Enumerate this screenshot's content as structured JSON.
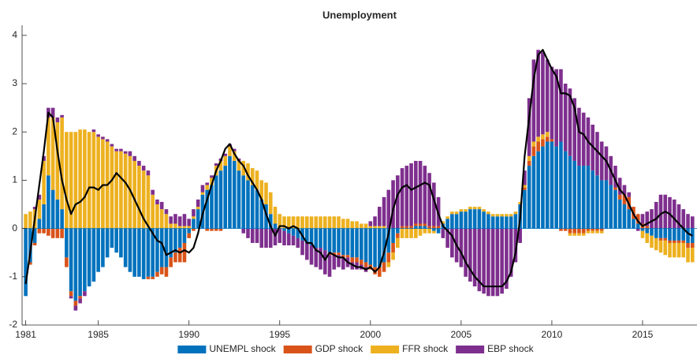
{
  "chart_data": {
    "type": "bar",
    "stacked": true,
    "title": "Unemployment",
    "x": [
      1981,
      1981.25,
      1981.5,
      1981.75,
      1982,
      1982.25,
      1982.5,
      1982.75,
      1983,
      1983.25,
      1983.5,
      1983.75,
      1984,
      1984.25,
      1984.5,
      1984.75,
      1985,
      1985.25,
      1985.5,
      1985.75,
      1986,
      1986.25,
      1986.5,
      1986.75,
      1987,
      1987.25,
      1987.5,
      1987.75,
      1988,
      1988.25,
      1988.5,
      1988.75,
      1989,
      1989.25,
      1989.5,
      1989.75,
      1990,
      1990.25,
      1990.5,
      1990.75,
      1991,
      1991.25,
      1991.5,
      1991.75,
      1992,
      1992.25,
      1992.5,
      1992.75,
      1993,
      1993.25,
      1993.5,
      1993.75,
      1994,
      1994.25,
      1994.5,
      1994.75,
      1995,
      1995.25,
      1995.5,
      1995.75,
      1996,
      1996.25,
      1996.5,
      1996.75,
      1997,
      1997.25,
      1997.5,
      1997.75,
      1998,
      1998.25,
      1998.5,
      1998.75,
      1999,
      1999.25,
      1999.5,
      1999.75,
      2000,
      2000.25,
      2000.5,
      2000.75,
      2001,
      2001.25,
      2001.5,
      2001.75,
      2002,
      2002.25,
      2002.5,
      2002.75,
      2003,
      2003.25,
      2003.5,
      2003.75,
      2004,
      2004.25,
      2004.5,
      2004.75,
      2005,
      2005.25,
      2005.5,
      2005.75,
      2006,
      2006.25,
      2006.5,
      2006.75,
      2007,
      2007.25,
      2007.5,
      2007.75,
      2008,
      2008.25,
      2008.5,
      2008.75,
      2009,
      2009.25,
      2009.5,
      2009.75,
      2010,
      2010.25,
      2010.5,
      2010.75,
      2011,
      2011.25,
      2011.5,
      2011.75,
      2012,
      2012.25,
      2012.5,
      2012.75,
      2013,
      2013.25,
      2013.5,
      2013.75,
      2014,
      2014.25,
      2014.5,
      2014.75,
      2015,
      2015.25,
      2015.5,
      2015.75,
      2016,
      2016.25,
      2016.5,
      2016.75,
      2017,
      2017.25,
      2017.5,
      2017.75
    ],
    "series": [
      {
        "name": "UNEMPL shock",
        "color": "#0072BD",
        "values": [
          -1.4,
          -0.7,
          -0.3,
          0.2,
          0.5,
          1.1,
          0.8,
          0.6,
          0.4,
          -0.6,
          -1.3,
          -1.5,
          -1.4,
          -1.3,
          -1.2,
          -1.1,
          -0.9,
          -0.8,
          -0.6,
          -0.4,
          -0.5,
          -0.6,
          -0.8,
          -0.9,
          -1.0,
          -1.0,
          -1.05,
          -1.0,
          -1.0,
          -0.9,
          -0.8,
          -0.8,
          -0.6,
          -0.5,
          -0.4,
          -0.3,
          -0.1,
          0.2,
          0.4,
          0.7,
          0.8,
          0.9,
          1.1,
          1.2,
          1.3,
          1.5,
          1.4,
          1.2,
          1.1,
          1.0,
          0.9,
          0.8,
          0.6,
          0.5,
          0.3,
          0.1,
          0,
          -0.05,
          -0.1,
          -0.15,
          -0.2,
          -0.25,
          -0.3,
          -0.35,
          -0.4,
          -0.4,
          -0.45,
          -0.5,
          -0.5,
          -0.5,
          -0.55,
          -0.55,
          -0.6,
          -0.6,
          -0.65,
          -0.7,
          -0.75,
          -0.8,
          -0.8,
          -0.7,
          -0.5,
          -0.3,
          -0.1,
          0,
          0,
          0,
          0.05,
          0.05,
          0.05,
          0,
          -0.05,
          -0.1,
          0.1,
          0.2,
          0.3,
          0.3,
          0.35,
          0.35,
          0.4,
          0.4,
          0.4,
          0.35,
          0.3,
          0.25,
          0.25,
          0.25,
          0.25,
          0.25,
          0.3,
          0.5,
          0.8,
          1.3,
          1.5,
          1.6,
          1.7,
          1.8,
          1.8,
          1.7,
          1.8,
          1.6,
          1.5,
          1.4,
          1.3,
          1.3,
          1.3,
          1.2,
          1.1,
          1.0,
          1.0,
          0.9,
          0.8,
          0.6,
          0.5,
          0.4,
          0.2,
          0.1,
          -0.05,
          -0.1,
          -0.15,
          -0.2,
          -0.2,
          -0.2,
          -0.25,
          -0.25,
          -0.25,
          -0.25,
          -0.3,
          -0.3
        ]
      },
      {
        "name": "GDP shock",
        "color": "#D95319",
        "values": [
          0,
          -0.05,
          -0.05,
          -0.1,
          -0.1,
          -0.15,
          -0.2,
          -0.2,
          -0.2,
          -0.2,
          -0.1,
          -0.1,
          -0.05,
          0,
          0,
          0,
          0,
          0,
          0,
          0,
          0,
          0,
          0,
          0,
          0,
          0,
          0,
          -0.05,
          -0.05,
          -0.1,
          -0.15,
          -0.2,
          -0.2,
          -0.2,
          -0.3,
          -0.4,
          -0.1,
          -0.05,
          0,
          0,
          -0.05,
          -0.05,
          -0.05,
          -0.05,
          0,
          0,
          0,
          0,
          0,
          0,
          0,
          0,
          0,
          0,
          0,
          0,
          0,
          0,
          0,
          0,
          0,
          0,
          0,
          0,
          0,
          0,
          0,
          -0.05,
          -0.05,
          -0.05,
          -0.05,
          -0.05,
          -0.1,
          -0.1,
          -0.1,
          -0.1,
          -0.1,
          -0.15,
          -0.2,
          -0.2,
          -0.2,
          -0.2,
          -0.1,
          0.05,
          0.05,
          0.05,
          0.05,
          0.05,
          0.05,
          0.05,
          0.05,
          0.05,
          0,
          0,
          0,
          0,
          0,
          0,
          0,
          0,
          0,
          0,
          0,
          0,
          0,
          0,
          0,
          0,
          0,
          0,
          0.05,
          0.1,
          0.2,
          0.2,
          0.15,
          0.1,
          0.05,
          0,
          -0.05,
          -0.05,
          -0.1,
          -0.1,
          -0.1,
          -0.1,
          -0.05,
          -0.05,
          -0.05,
          -0.05,
          0,
          0,
          0.05,
          0.1,
          0.2,
          0.25,
          0.25,
          0.2,
          0.1,
          0.05,
          0,
          0,
          -0.05,
          -0.05,
          -0.05,
          -0.05,
          -0.05,
          -0.05,
          -0.1,
          -0.1
        ]
      },
      {
        "name": "FFR shock",
        "color": "#EDB120",
        "values": [
          0.3,
          0.35,
          0.4,
          0.4,
          0.9,
          1.2,
          1.5,
          1.6,
          1.9,
          2.0,
          2.0,
          2.0,
          2.05,
          2.05,
          2.0,
          2.0,
          1.9,
          1.85,
          1.8,
          1.7,
          1.6,
          1.6,
          1.55,
          1.5,
          1.4,
          1.3,
          1.2,
          1.1,
          0.7,
          0.5,
          0.4,
          0.3,
          0.1,
          0.1,
          0.05,
          0.05,
          0.05,
          0.05,
          0.05,
          0.05,
          0.1,
          0.15,
          0.2,
          0.2,
          0.2,
          0.2,
          0.2,
          0.2,
          0.3,
          0.35,
          0.35,
          0.4,
          0.4,
          0.45,
          0.45,
          0.35,
          0.3,
          0.25,
          0.25,
          0.25,
          0.25,
          0.25,
          0.25,
          0.25,
          0.25,
          0.25,
          0.25,
          0.25,
          0.25,
          0.25,
          0.2,
          0.2,
          0.15,
          0.15,
          0.1,
          0.1,
          0.05,
          0.05,
          0.05,
          0.05,
          -0.1,
          -0.15,
          -0.2,
          -0.2,
          -0.2,
          -0.2,
          -0.2,
          -0.15,
          -0.1,
          -0.1,
          -0.05,
          0,
          0.05,
          0.05,
          0.05,
          0.05,
          0.05,
          0.05,
          0.05,
          0.05,
          0.05,
          0.05,
          0.05,
          0.05,
          0.05,
          0.05,
          0.05,
          0.05,
          0.05,
          0.05,
          0.05,
          0.1,
          0.1,
          0.1,
          0.1,
          0.1,
          0,
          0,
          0,
          0,
          -0.05,
          -0.05,
          -0.05,
          -0.05,
          -0.05,
          -0.05,
          -0.05,
          -0.05,
          0,
          0,
          0,
          0,
          0,
          0,
          0,
          0,
          -0.15,
          -0.2,
          -0.25,
          -0.25,
          -0.25,
          -0.3,
          -0.3,
          -0.3,
          -0.3,
          -0.3,
          -0.3,
          -0.3
        ]
      },
      {
        "name": "EBP shock",
        "color": "#7E2F8E",
        "values": [
          0,
          0,
          0.05,
          0.1,
          0.1,
          0.2,
          0.2,
          0.1,
          0.05,
          0,
          -0.05,
          -0.1,
          -0.1,
          -0.1,
          0,
          0.05,
          0.05,
          0.05,
          0.05,
          0.05,
          0.05,
          0.05,
          0.05,
          0.1,
          0.1,
          0.1,
          0.1,
          0.1,
          0.1,
          0.1,
          0.15,
          0.1,
          0.15,
          0.2,
          0.2,
          0.25,
          0.15,
          0.15,
          0.15,
          0.15,
          0.05,
          0.05,
          0.05,
          0.05,
          0.05,
          0.05,
          0.05,
          0.05,
          -0.1,
          -0.2,
          -0.3,
          -0.3,
          -0.4,
          -0.4,
          -0.4,
          -0.35,
          -0.3,
          -0.3,
          -0.25,
          -0.2,
          -0.2,
          -0.3,
          -0.35,
          -0.4,
          -0.4,
          -0.45,
          -0.5,
          -0.45,
          -0.3,
          -0.25,
          -0.25,
          -0.2,
          -0.15,
          -0.15,
          -0.1,
          -0.1,
          0.1,
          0.2,
          0.4,
          0.6,
          0.8,
          1.0,
          1.1,
          1.2,
          1.25,
          1.3,
          1.3,
          1.3,
          1.2,
          1.1,
          0.9,
          0.6,
          -0.2,
          -0.4,
          -0.6,
          -0.7,
          -0.8,
          -1.0,
          -1.1,
          -1.2,
          -1.3,
          -1.35,
          -1.4,
          -1.4,
          -1.4,
          -1.35,
          -1.25,
          -1.0,
          -0.7,
          -0.3,
          0.3,
          1.2,
          1.7,
          1.8,
          1.7,
          1.5,
          1.5,
          1.6,
          1.5,
          1.4,
          1.4,
          1.3,
          1.2,
          1.1,
          1.0,
          0.95,
          0.9,
          0.8,
          0.7,
          0.6,
          0.45,
          0.35,
          0.2,
          0.1,
          0,
          -0.05,
          0.2,
          0.3,
          0.4,
          0.55,
          0.7,
          0.7,
          0.65,
          0.6,
          0.5,
          0.4,
          0.3,
          0.25
        ]
      }
    ],
    "line": {
      "color": "#000000",
      "values": [
        -1.15,
        -0.5,
        0.2,
        0.9,
        1.6,
        2.4,
        2.3,
        1.6,
        1.0,
        0.6,
        0.3,
        0.5,
        0.55,
        0.65,
        0.85,
        0.85,
        0.8,
        0.9,
        0.9,
        1.0,
        1.15,
        1.05,
        0.95,
        0.8,
        0.6,
        0.4,
        0.2,
        0.05,
        -0.1,
        -0.25,
        -0.3,
        -0.55,
        -0.5,
        -0.45,
        -0.5,
        -0.45,
        -0.5,
        -0.4,
        -0.1,
        0.3,
        0.6,
        0.9,
        1.2,
        1.4,
        1.65,
        1.75,
        1.55,
        1.4,
        1.3,
        1.1,
        0.95,
        0.8,
        0.6,
        0.3,
        0.05,
        -0.15,
        0.05,
        0.05,
        0,
        0.05,
        0,
        -0.15,
        -0.3,
        -0.3,
        -0.45,
        -0.5,
        -0.65,
        -0.5,
        -0.55,
        -0.6,
        -0.6,
        -0.7,
        -0.75,
        -0.8,
        -0.8,
        -0.85,
        -0.8,
        -0.9,
        -0.8,
        -0.5,
        -0.1,
        0.4,
        0.7,
        0.85,
        0.9,
        0.8,
        0.85,
        0.9,
        0.95,
        0.9,
        0.6,
        0.3,
        0.05,
        -0.05,
        -0.15,
        -0.35,
        -0.5,
        -0.7,
        -0.85,
        -1.0,
        -1.1,
        -1.2,
        -1.2,
        -1.2,
        -1.2,
        -1.2,
        -1.1,
        -0.9,
        -0.5,
        0.2,
        1.5,
        2.3,
        3.1,
        3.6,
        3.7,
        3.5,
        3.3,
        3.15,
        2.8,
        2.8,
        2.75,
        2.5,
        2.0,
        1.95,
        1.8,
        1.7,
        1.6,
        1.5,
        1.4,
        1.2,
        1.0,
        0.8,
        0.7,
        0.5,
        0.3,
        0.15,
        0.05,
        0.1,
        0.15,
        0.2,
        0.3,
        0.35,
        0.3,
        0.2,
        0.1,
        0,
        -0.1,
        -0.15
      ]
    },
    "xlim": [
      1980.8,
      2018.0
    ],
    "xticks": [
      1981,
      1985,
      1990,
      1995,
      2000,
      2005,
      2010,
      2015
    ],
    "ylim": [
      -2,
      4.21
    ],
    "yticks": [
      -2,
      -1,
      0,
      1,
      2,
      3,
      4
    ],
    "legend": "bottom"
  }
}
